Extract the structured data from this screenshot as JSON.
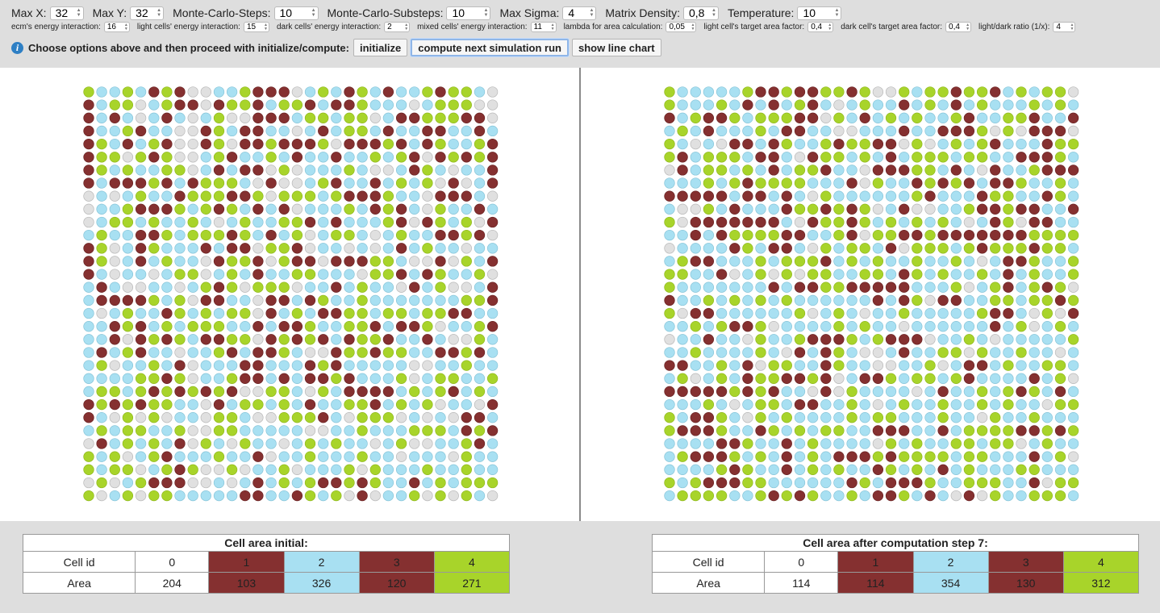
{
  "controls": {
    "row1": [
      {
        "label": "Max X:",
        "value": "32"
      },
      {
        "label": "Max Y:",
        "value": "32"
      },
      {
        "label": "Monte-Carlo-Steps:",
        "value": "10"
      },
      {
        "label": "Monte-Carlo-Substeps:",
        "value": "10"
      },
      {
        "label": "Max Sigma:",
        "value": "4"
      },
      {
        "label": "Matrix Density:",
        "value": "0,8"
      },
      {
        "label": "Temperature:",
        "value": "10"
      }
    ],
    "row2": [
      {
        "label": "ecm's energy interaction:",
        "value": "16"
      },
      {
        "label": "light cells' energy interaction:",
        "value": "15"
      },
      {
        "label": "dark cells' energy interaction:",
        "value": "2"
      },
      {
        "label": "mixed cells' energy interaction:",
        "value": "11"
      },
      {
        "label": "lambda for area calculation:",
        "value": "0,05"
      },
      {
        "label": "light cell's target area factor:",
        "value": "0,4"
      },
      {
        "label": "dark cell's target area factor:",
        "value": "0,4"
      },
      {
        "label": "light/dark ratio (1/x):",
        "value": "4"
      }
    ]
  },
  "actions": {
    "instruction": "Choose options above and then proceed with initialize/compute:",
    "initialize": "initialize",
    "compute": "compute next simulation run",
    "chart": "show line chart"
  },
  "colors": {
    "0": "#e0e0e0",
    "1": "#853030",
    "2": "#a8e0f2",
    "3": "#853030",
    "4": "#a8d42a"
  },
  "grids": {
    "size": 32,
    "initial": [
      "42242143002241330242342322434420",
      "12440241103441244321342220244400",
      "12120232024001332442440231444330",
      "32243220014213220232442122332232",
      "14232410034033413140331432342241",
      "34404340024122423223224241014343",
      "34242244023211040222420023420223",
      "32113412344420300243223242403023",
      "02024221444334044424131422013120",
      "02243134241421230222421412042232",
      "02442422420242244321222410342401",
      "24221142444342124024420242213430",
      "34021422212330441022020232422022",
      "14021242203441043301134420030421",
      "32022024402423224422204432142240",
      "23200220243404440221242203240021",
      "23131424033220332142242222222441",
      "20242214242440124213442442443322",
      "22141242444221231422443231402241",
      "22303434211440341412344122320042",
      "23243220224321342003441442211432",
      "24022423022213222343222220022422",
      "22224434022413232134322240244224",
      "24424343414300442042311124241242",
      "14141442203244242322443242402201",
      "32040402204420044412044402020132",
      "24244224004422222002242224442341",
      "01242421042042202424220240022412",
      "42402412224223022422242202220422",
      "42440243400402240222404222422422",
      "04024133002021242411414221242444",
      "40240442222213223424030224040420"
    ],
    "final": [
      "42222241343344340042443441242440",
      "42224212124320242232423242224242",
      "32413424443304232424224322443223",
      "24232224233220022212233340403330",
      "42020132342241443304024241222344",
      "43244423320344242324442442233342",
      "01244242124432203334423201224313",
      "22242414444222304223434323142242",
      "31111213232042222224322214422342",
      "20042322234434340230022433433223",
      "40133331120344342424242023403322",
      "22123444413224304431433133334444",
      "02222342332042442304442414443442",
      "24332224244432424224224202334224",
      "44223024040442244234242242324224",
      "42222222323344331332224024324340",
      "32242424242222223234033224424434",
      "40332222224024202242222243320403",
      "22424334022224242202222223240242",
      "02232204224333424333022420222224",
      "22422224203234200232244042242202",
      "33224230442214220022402332422442",
      "24024234433430233424424322223240",
      "33333414122030422220232242434232",
      "22242024423322420242242242422044",
      "42334204242222424422242204224222",
      "43114223424244223332232444433434",
      "22221342232422220424224424402422",
      "24333424232423334344442442223240",
      "22224342212424223424232422244222",
      "42433144222222342333422444223044",
      "24444224343422423342320304224442"
    ]
  },
  "tables": {
    "initial": {
      "caption": "Cell area initial:",
      "id_header": "Cell id",
      "area_header": "Area",
      "ids": [
        "0",
        "1",
        "2",
        "3",
        "4"
      ],
      "areas": [
        "204",
        "103",
        "326",
        "120",
        "271"
      ]
    },
    "final": {
      "caption": "Cell area after computation step 7:",
      "id_header": "Cell id",
      "area_header": "Area",
      "ids": [
        "0",
        "1",
        "2",
        "3",
        "4"
      ],
      "areas": [
        "114",
        "114",
        "354",
        "130",
        "312"
      ]
    }
  }
}
